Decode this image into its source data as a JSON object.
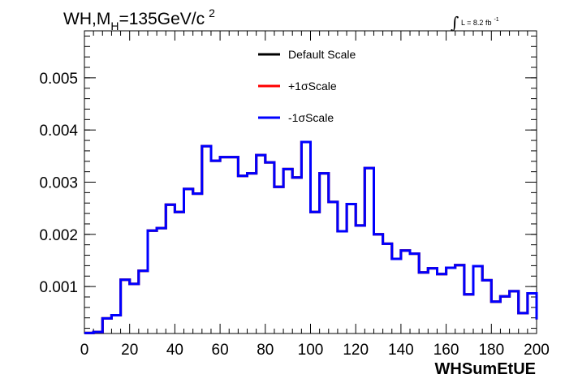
{
  "title_parts": {
    "main": "WH,M",
    "sub": "H",
    "rest": "=135GeV/c",
    "sup": "2"
  },
  "lumi_parts": {
    "text": "L = 8.2 fb",
    "sup": "-1"
  },
  "chart_data": {
    "type": "line",
    "title": "WH,M_H=135GeV/c^2",
    "xlabel": "WHSumEtUE",
    "ylabel": "",
    "xlim": [
      0,
      200
    ],
    "ylim": [
      0.0001,
      0.0059
    ],
    "x_ticks": [
      "0",
      "20",
      "40",
      "60",
      "80",
      "100",
      "120",
      "140",
      "160",
      "180",
      "200"
    ],
    "y_ticks": [
      "0.001",
      "0.002",
      "0.003",
      "0.004",
      "0.005"
    ],
    "bin_width": 4,
    "bin_edges_start": 0,
    "legend_position": "top-center",
    "series": [
      {
        "name": "Default Scale",
        "color": "#000000",
        "values": [
          0.00011,
          0.00013,
          0.00039,
          0.00045,
          0.00113,
          0.00105,
          0.0013,
          0.00207,
          0.00212,
          0.00257,
          0.00243,
          0.00287,
          0.00278,
          0.00369,
          0.00341,
          0.00348,
          0.00348,
          0.00312,
          0.00317,
          0.00352,
          0.00338,
          0.00291,
          0.00325,
          0.00309,
          0.00377,
          0.00243,
          0.00317,
          0.00262,
          0.00206,
          0.00258,
          0.00217,
          0.00327,
          0.002,
          0.00182,
          0.00153,
          0.00169,
          0.00163,
          0.00127,
          0.00135,
          0.00124,
          0.00136,
          0.00141,
          0.00085,
          0.00139,
          0.00112,
          0.00071,
          0.00081,
          0.00091,
          0.00049,
          0.00087,
          0.00037
        ]
      },
      {
        "name": "+1σScale",
        "color": "#ff0000",
        "values": [
          0.00011,
          0.00013,
          0.00039,
          0.00045,
          0.00113,
          0.00105,
          0.0013,
          0.00207,
          0.00212,
          0.00257,
          0.00243,
          0.00287,
          0.00278,
          0.00369,
          0.00341,
          0.00348,
          0.00348,
          0.00312,
          0.00317,
          0.00352,
          0.00338,
          0.00291,
          0.00325,
          0.00309,
          0.00377,
          0.00243,
          0.00317,
          0.00262,
          0.00206,
          0.00258,
          0.00217,
          0.00327,
          0.002,
          0.00182,
          0.00153,
          0.00169,
          0.00163,
          0.00127,
          0.00135,
          0.00124,
          0.00136,
          0.00141,
          0.00085,
          0.00139,
          0.00112,
          0.00071,
          0.00081,
          0.00091,
          0.00049,
          0.00087,
          0.00037
        ]
      },
      {
        "name": "-1σScale",
        "color": "#0000ff",
        "values": [
          0.00011,
          0.00013,
          0.00039,
          0.00045,
          0.00113,
          0.00105,
          0.0013,
          0.00207,
          0.00212,
          0.00257,
          0.00243,
          0.00287,
          0.00278,
          0.00369,
          0.00341,
          0.00348,
          0.00348,
          0.00312,
          0.00317,
          0.00352,
          0.00338,
          0.00291,
          0.00325,
          0.00309,
          0.00377,
          0.00243,
          0.00317,
          0.00262,
          0.00206,
          0.00258,
          0.00217,
          0.00327,
          0.002,
          0.00182,
          0.00153,
          0.00169,
          0.00163,
          0.00127,
          0.00135,
          0.00124,
          0.00136,
          0.00141,
          0.00085,
          0.00139,
          0.00112,
          0.00071,
          0.00081,
          0.00091,
          0.00049,
          0.00087,
          0.00037
        ]
      }
    ]
  }
}
